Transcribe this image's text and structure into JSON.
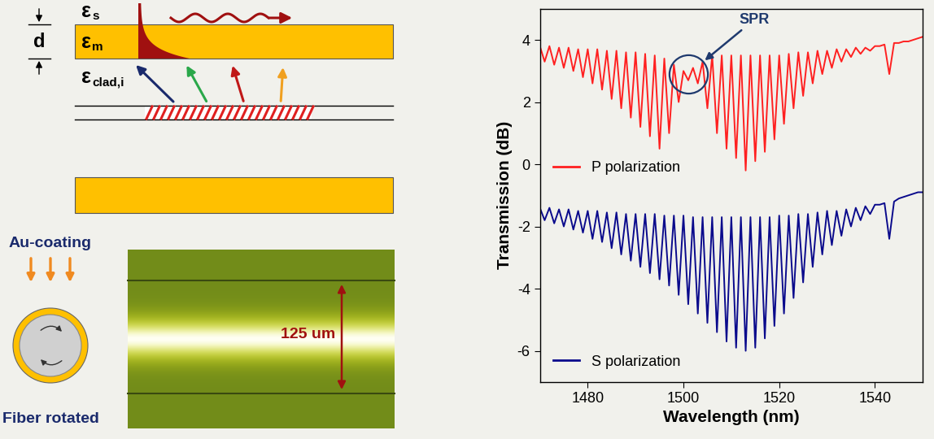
{
  "chart_data": {
    "type": "line",
    "xlabel": "Wavelength (nm)",
    "ylabel": "Transmission (dB)",
    "xlim": [
      1470,
      1550
    ],
    "ylim": [
      -7,
      5
    ],
    "xticks": [
      1480,
      1500,
      1520,
      1540
    ],
    "yticks": [
      -6,
      -4,
      -2,
      0,
      2,
      4
    ],
    "legend": "lower left",
    "x": [
      1470,
      1471,
      1472,
      1473,
      1474,
      1475,
      1476,
      1477,
      1478,
      1479,
      1480,
      1481,
      1482,
      1483,
      1484,
      1485,
      1486,
      1487,
      1488,
      1489,
      1490,
      1491,
      1492,
      1493,
      1494,
      1495,
      1496,
      1497,
      1498,
      1499,
      1500,
      1501,
      1502,
      1503,
      1504,
      1505,
      1506,
      1507,
      1508,
      1509,
      1510,
      1511,
      1512,
      1513,
      1514,
      1515,
      1516,
      1517,
      1518,
      1519,
      1520,
      1521,
      1522,
      1523,
      1524,
      1525,
      1526,
      1527,
      1528,
      1529,
      1530,
      1531,
      1532,
      1533,
      1534,
      1535,
      1536,
      1537,
      1538,
      1539,
      1540,
      1541,
      1542,
      1543,
      1544,
      1545,
      1546,
      1547,
      1548,
      1549,
      1550
    ],
    "series": [
      {
        "name": "P polarization",
        "color": "#ff2020",
        "values": [
          3.8,
          3.3,
          3.8,
          3.2,
          3.75,
          3.1,
          3.75,
          3.0,
          3.7,
          2.8,
          3.7,
          2.6,
          3.7,
          2.4,
          3.65,
          2.1,
          3.65,
          1.8,
          3.6,
          1.5,
          3.6,
          1.2,
          3.55,
          0.9,
          3.5,
          0.5,
          3.4,
          1.0,
          3.2,
          2.0,
          3.0,
          2.7,
          3.1,
          2.6,
          3.3,
          1.8,
          3.5,
          1.0,
          3.5,
          0.5,
          3.5,
          0.2,
          3.5,
          -0.2,
          3.5,
          0.1,
          3.5,
          0.4,
          3.5,
          0.8,
          3.5,
          1.3,
          3.55,
          1.8,
          3.6,
          2.2,
          3.6,
          2.6,
          3.65,
          2.9,
          3.65,
          3.1,
          3.7,
          3.3,
          3.7,
          3.45,
          3.75,
          3.55,
          3.75,
          3.65,
          3.8,
          3.8,
          3.85,
          2.9,
          3.9,
          3.9,
          3.95,
          3.95,
          4.0,
          4.05,
          4.1
        ]
      },
      {
        "name": "S polarization",
        "color": "#0a0a8c",
        "values": [
          -1.4,
          -1.8,
          -1.4,
          -1.9,
          -1.45,
          -2.0,
          -1.45,
          -2.1,
          -1.5,
          -2.2,
          -1.5,
          -2.4,
          -1.5,
          -2.5,
          -1.55,
          -2.7,
          -1.55,
          -2.9,
          -1.6,
          -3.1,
          -1.6,
          -3.3,
          -1.6,
          -3.5,
          -1.6,
          -3.7,
          -1.65,
          -3.9,
          -1.65,
          -4.2,
          -1.65,
          -4.5,
          -1.7,
          -4.8,
          -1.7,
          -5.1,
          -1.7,
          -5.4,
          -1.7,
          -5.7,
          -1.7,
          -5.9,
          -1.7,
          -6.0,
          -1.7,
          -5.9,
          -1.7,
          -5.6,
          -1.7,
          -5.2,
          -1.65,
          -4.8,
          -1.65,
          -4.3,
          -1.6,
          -3.8,
          -1.6,
          -3.3,
          -1.55,
          -2.9,
          -1.5,
          -2.6,
          -1.5,
          -2.3,
          -1.45,
          -2.0,
          -1.4,
          -1.8,
          -1.35,
          -1.6,
          -1.3,
          -1.3,
          -1.25,
          -2.4,
          -1.2,
          -1.1,
          -1.05,
          -1.0,
          -0.95,
          -0.9,
          -0.9
        ]
      }
    ],
    "annotations": [
      {
        "text": "SPR",
        "x": 1501,
        "y": 2.9
      }
    ]
  },
  "diagram": {
    "layers": [
      {
        "symbol": "ε",
        "subscript": "s"
      },
      {
        "symbol": "ε",
        "subscript": "m"
      },
      {
        "symbol": "ε",
        "subscript": "clad,i"
      }
    ],
    "thickness_label": "d",
    "coating_label": "Au-coating",
    "rotation_label": "Fiber rotated",
    "diameter_label": "125 um"
  }
}
